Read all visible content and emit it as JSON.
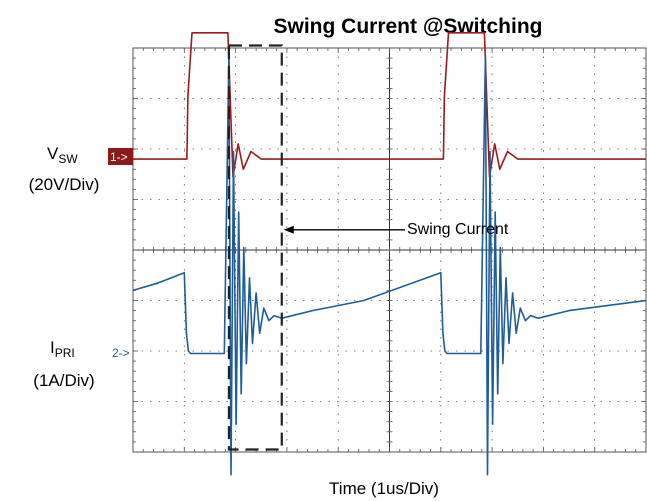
{
  "chart_data": {
    "type": "line",
    "title": "Swing Current @Switching",
    "xlabel": "Time (1us/Div)",
    "x_divisions": 10,
    "y_divisions": 8,
    "grid": true,
    "colors": {
      "ch1": "#9b1b1b",
      "ch2": "#1f5d99",
      "grid": "#555555"
    },
    "series": [
      {
        "channel_marker": "1->",
        "label_main": "V",
        "label_sub": "SW",
        "scale": "(20V/Div)",
        "unit": "div",
        "x": [
          0,
          1.05,
          1.07,
          1.15,
          1.85,
          1.9,
          1.95,
          2.05,
          2.15,
          2.3,
          2.5,
          3.5,
          5.0,
          6.0,
          6.05,
          6.07,
          6.15,
          6.85,
          6.9,
          6.95,
          7.05,
          7.15,
          7.3,
          7.5,
          8.5,
          10
        ],
        "y": [
          -0.05,
          -0.05,
          1.2,
          2.45,
          2.45,
          1.0,
          -0.4,
          0.25,
          -0.25,
          0.1,
          -0.05,
          -0.05,
          -0.05,
          -0.05,
          -0.05,
          1.2,
          2.45,
          2.45,
          1.0,
          -0.4,
          0.25,
          -0.25,
          0.1,
          -0.05,
          -0.05,
          -0.05
        ]
      },
      {
        "channel_marker": "2->",
        "label_main": "I",
        "label_sub": "PRI",
        "scale": "(1A/Div)",
        "unit": "div",
        "x": [
          0,
          0.5,
          1.0,
          1.04,
          1.08,
          1.12,
          1.5,
          1.78,
          1.87,
          1.91,
          1.96,
          2.01,
          2.06,
          2.11,
          2.16,
          2.21,
          2.27,
          2.33,
          2.4,
          2.47,
          2.55,
          2.65,
          2.75,
          2.9,
          3.5,
          4.5,
          6.0,
          6.04,
          6.08,
          6.12,
          6.5,
          6.78,
          6.87,
          6.91,
          6.96,
          7.01,
          7.06,
          7.11,
          7.16,
          7.21,
          7.27,
          7.33,
          7.4,
          7.47,
          7.55,
          7.65,
          7.75,
          7.9,
          8.5,
          10
        ],
        "y": [
          1.25,
          1.4,
          1.6,
          0.4,
          0.05,
          0.0,
          0.0,
          0.0,
          5.9,
          -2.4,
          4.0,
          -1.4,
          2.8,
          -0.8,
          2.1,
          -0.2,
          1.5,
          0.2,
          1.2,
          0.4,
          0.9,
          0.65,
          0.75,
          0.7,
          0.85,
          1.05,
          1.6,
          0.4,
          0.05,
          0.0,
          0.0,
          0.0,
          5.9,
          -2.4,
          4.0,
          -1.4,
          2.8,
          -0.8,
          2.1,
          -0.2,
          1.5,
          0.2,
          1.2,
          0.4,
          0.9,
          0.65,
          0.75,
          0.7,
          0.85,
          1.05
        ]
      }
    ],
    "annotation": {
      "text": "Swing Current",
      "x_range": [
        1.87,
        2.9
      ],
      "y_range": [
        -3.95,
        4.05
      ]
    }
  }
}
